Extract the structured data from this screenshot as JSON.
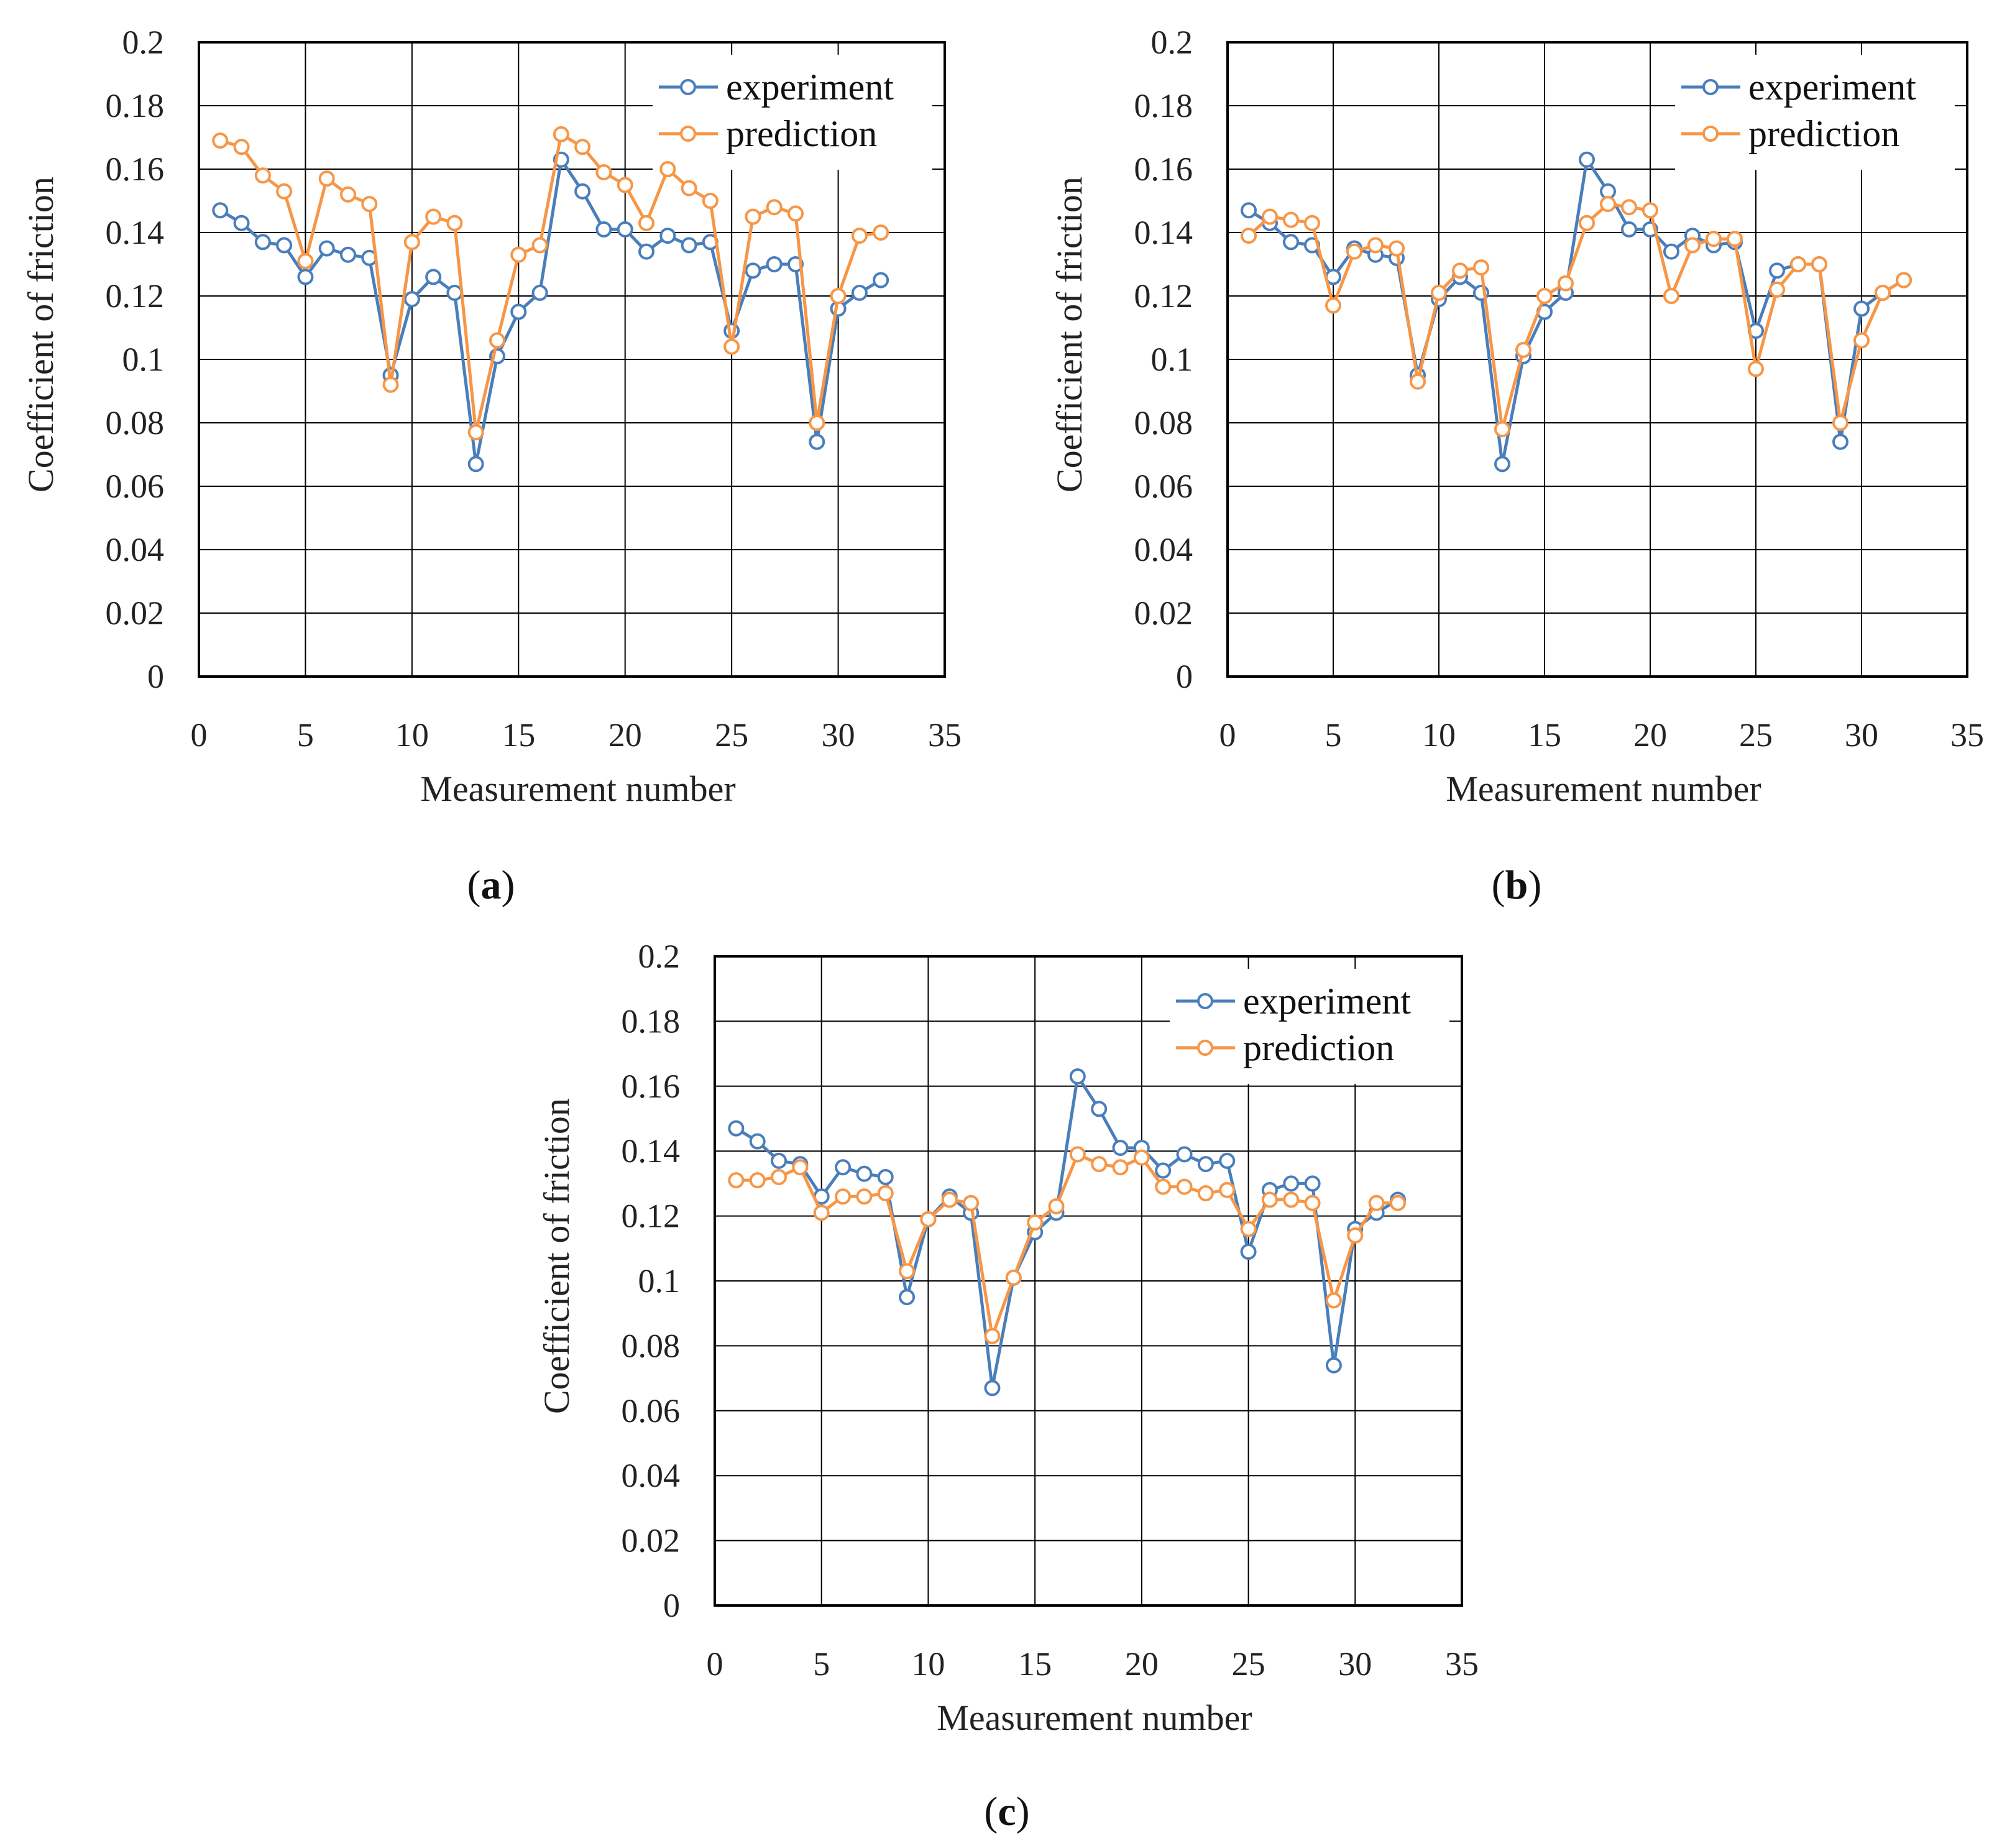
{
  "chart_data": [
    {
      "type": "line",
      "panel_label": "a",
      "xlabel": "Measurement number",
      "ylabel": "Coefficient of friction",
      "xlim": [
        0,
        35
      ],
      "ylim": [
        0,
        0.2
      ],
      "xticks": [
        0,
        5,
        10,
        15,
        20,
        25,
        30,
        35
      ],
      "yticks": [
        0,
        0.02,
        0.04,
        0.06,
        0.08,
        0.1,
        0.12,
        0.14,
        0.16,
        0.18,
        0.2
      ],
      "xtick_labels": [
        "0",
        "5",
        "10",
        "15",
        "20",
        "25",
        "30",
        "35"
      ],
      "ytick_labels": [
        "0",
        "0.02",
        "0.04",
        "0.06",
        "0.08",
        "0.1",
        "0.12",
        "0.14",
        "0.16",
        "0.18",
        "0.2"
      ],
      "grid": true,
      "legend": "top-right",
      "x": [
        1,
        2,
        3,
        4,
        5,
        6,
        7,
        8,
        9,
        10,
        11,
        12,
        13,
        14,
        15,
        16,
        17,
        18,
        19,
        20,
        21,
        22,
        23,
        24,
        25,
        26,
        27,
        28,
        29,
        30,
        31,
        32
      ],
      "series": [
        {
          "name": "experiment",
          "color": "#4a7ebb",
          "values": [
            0.147,
            0.143,
            0.137,
            0.136,
            0.126,
            0.135,
            0.133,
            0.132,
            0.095,
            0.119,
            0.126,
            0.121,
            0.067,
            0.101,
            0.115,
            0.121,
            0.163,
            0.153,
            0.141,
            0.141,
            0.134,
            0.139,
            0.136,
            0.137,
            0.109,
            0.128,
            0.13,
            0.13,
            0.074,
            0.116,
            0.121,
            0.125
          ]
        },
        {
          "name": "prediction",
          "color": "#f79646",
          "values": [
            0.169,
            0.167,
            0.158,
            0.153,
            0.131,
            0.157,
            0.152,
            0.149,
            0.092,
            0.137,
            0.145,
            0.143,
            0.077,
            0.106,
            0.133,
            0.136,
            0.171,
            0.167,
            0.159,
            0.155,
            0.143,
            0.16,
            0.154,
            0.15,
            0.104,
            0.145,
            0.148,
            0.146,
            0.08,
            0.12,
            0.139,
            0.14
          ]
        }
      ]
    },
    {
      "type": "line",
      "panel_label": "b",
      "xlabel": "Measurement number",
      "ylabel": "Coefficient of friction",
      "xlim": [
        0,
        35
      ],
      "ylim": [
        0,
        0.2
      ],
      "xticks": [
        0,
        5,
        10,
        15,
        20,
        25,
        30,
        35
      ],
      "yticks": [
        0,
        0.02,
        0.04,
        0.06,
        0.08,
        0.1,
        0.12,
        0.14,
        0.16,
        0.18,
        0.2
      ],
      "xtick_labels": [
        "0",
        "5",
        "10",
        "15",
        "20",
        "25",
        "30",
        "35"
      ],
      "ytick_labels": [
        "0",
        "0.02",
        "0.04",
        "0.06",
        "0.08",
        "0.1",
        "0.12",
        "0.14",
        "0.16",
        "0.18",
        "0.2"
      ],
      "grid": true,
      "legend": "top-right",
      "x": [
        1,
        2,
        3,
        4,
        5,
        6,
        7,
        8,
        9,
        10,
        11,
        12,
        13,
        14,
        15,
        16,
        17,
        18,
        19,
        20,
        21,
        22,
        23,
        24,
        25,
        26,
        27,
        28,
        29,
        30,
        31,
        32
      ],
      "series": [
        {
          "name": "experiment",
          "color": "#4a7ebb",
          "values": [
            0.147,
            0.143,
            0.137,
            0.136,
            0.126,
            0.135,
            0.133,
            0.132,
            0.095,
            0.119,
            0.126,
            0.121,
            0.067,
            0.101,
            0.115,
            0.121,
            0.163,
            0.153,
            0.141,
            0.141,
            0.134,
            0.139,
            0.136,
            0.137,
            0.109,
            0.128,
            0.13,
            0.13,
            0.074,
            0.116,
            0.121,
            0.125
          ]
        },
        {
          "name": "prediction",
          "color": "#f79646",
          "values": [
            0.139,
            0.145,
            0.144,
            0.143,
            0.117,
            0.134,
            0.136,
            0.135,
            0.093,
            0.121,
            0.128,
            0.129,
            0.078,
            0.103,
            0.12,
            0.124,
            0.143,
            0.149,
            0.148,
            0.147,
            0.12,
            0.136,
            0.138,
            0.138,
            0.097,
            0.122,
            0.13,
            0.13,
            0.08,
            0.106,
            0.121,
            0.125
          ]
        }
      ]
    },
    {
      "type": "line",
      "panel_label": "c",
      "xlabel": "Measurement number",
      "ylabel": "Coefficient of friction",
      "xlim": [
        0,
        35
      ],
      "ylim": [
        0,
        0.2
      ],
      "xticks": [
        0,
        5,
        10,
        15,
        20,
        25,
        30,
        35
      ],
      "yticks": [
        0,
        0.02,
        0.04,
        0.06,
        0.08,
        0.1,
        0.12,
        0.14,
        0.16,
        0.18,
        0.2
      ],
      "xtick_labels": [
        "0",
        "5",
        "10",
        "15",
        "20",
        "25",
        "30",
        "35"
      ],
      "ytick_labels": [
        "0",
        "0.02",
        "0.04",
        "0.06",
        "0.08",
        "0.1",
        "0.12",
        "0.14",
        "0.16",
        "0.18",
        "0.2"
      ],
      "grid": true,
      "legend": "top-right",
      "x": [
        1,
        2,
        3,
        4,
        5,
        6,
        7,
        8,
        9,
        10,
        11,
        12,
        13,
        14,
        15,
        16,
        17,
        18,
        19,
        20,
        21,
        22,
        23,
        24,
        25,
        26,
        27,
        28,
        29,
        30,
        31,
        32
      ],
      "series": [
        {
          "name": "experiment",
          "color": "#4a7ebb",
          "values": [
            0.147,
            0.143,
            0.137,
            0.136,
            0.126,
            0.135,
            0.133,
            0.132,
            0.095,
            0.119,
            0.126,
            0.121,
            0.067,
            0.101,
            0.115,
            0.121,
            0.163,
            0.153,
            0.141,
            0.141,
            0.134,
            0.139,
            0.136,
            0.137,
            0.109,
            0.128,
            0.13,
            0.13,
            0.074,
            0.116,
            0.121,
            0.125
          ]
        },
        {
          "name": "prediction",
          "color": "#f79646",
          "values": [
            0.131,
            0.131,
            0.132,
            0.135,
            0.121,
            0.126,
            0.126,
            0.127,
            0.103,
            0.119,
            0.125,
            0.124,
            0.083,
            0.101,
            0.118,
            0.123,
            0.139,
            0.136,
            0.135,
            0.138,
            0.129,
            0.129,
            0.127,
            0.128,
            0.116,
            0.125,
            0.125,
            0.124,
            0.094,
            0.114,
            0.124,
            0.124
          ]
        }
      ]
    }
  ]
}
